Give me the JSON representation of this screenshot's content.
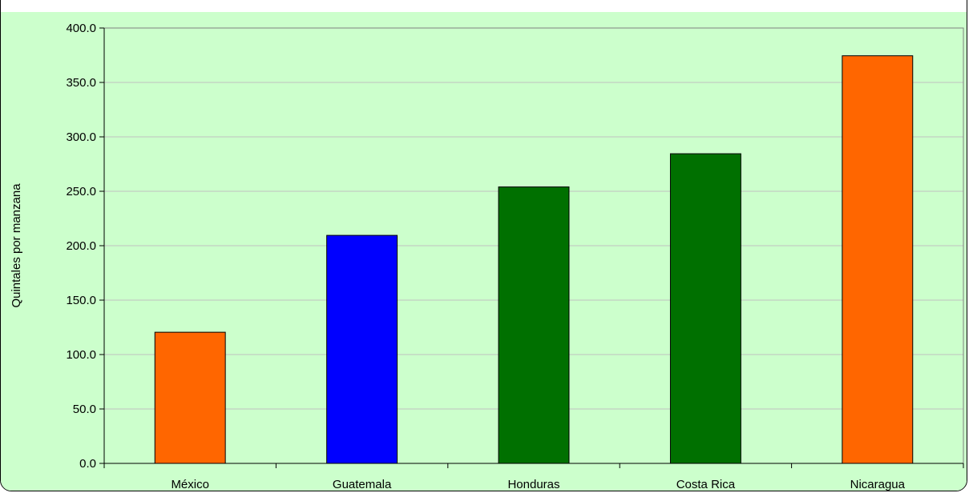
{
  "chart_data": {
    "type": "bar",
    "title": "",
    "xlabel": "",
    "ylabel": "Quintales por manzana",
    "categories": [
      "México",
      "Guatemala",
      "Honduras",
      "Costa Rica",
      "Nicaragua"
    ],
    "values": [
      120.5,
      209.5,
      254.0,
      284.5,
      374.5
    ],
    "bar_colors": [
      "#ff6600",
      "#0000ff",
      "#007000",
      "#007000",
      "#ff6600"
    ],
    "ylim": [
      0,
      400
    ],
    "yticks": [
      "0.0",
      "50.0",
      "100.0",
      "150.0",
      "200.0",
      "250.0",
      "300.0",
      "350.0",
      "400.0"
    ],
    "grid": true,
    "background_color": "#ccffcc",
    "gridline_color": "#c0c0c0"
  }
}
